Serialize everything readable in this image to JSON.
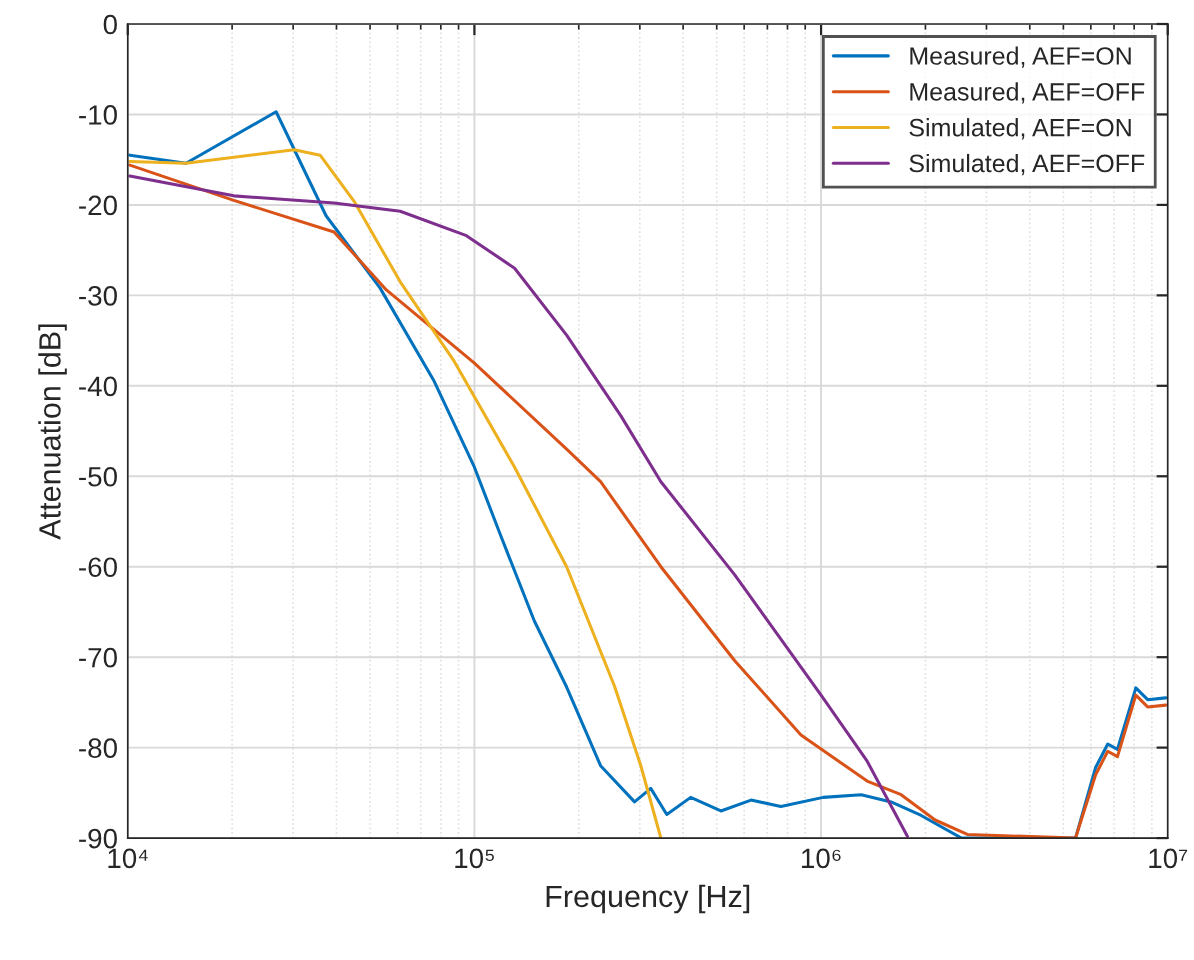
{
  "chart_data": {
    "type": "line",
    "xlabel": "Frequency [Hz]",
    "ylabel": "Attenuation [dB]",
    "log": "x",
    "xlim": [
      10000,
      10000000
    ],
    "xticks": [
      {
        "value": 10000,
        "label": "10⁴"
      },
      {
        "value": 100000,
        "label": "10⁵"
      },
      {
        "value": 1000000,
        "label": "10⁶"
      },
      {
        "value": 10000000,
        "label": "10⁷"
      }
    ],
    "ylim": [
      -90,
      0
    ],
    "yticks": [
      -90,
      -80,
      -70,
      -60,
      -50,
      -40,
      -30,
      -20,
      -10,
      0
    ],
    "grid": true,
    "legend": "top right",
    "series": [
      {
        "name": "Measured, AEF=ON",
        "color": "#0072bd",
        "x": [
          10140,
          14720,
          26790,
          37330,
          53460,
          76560,
          100000,
          118900,
          148900,
          184500,
          231200,
          289700,
          322600,
          358900,
          420600,
          514000,
          628100,
          765600,
          1014000,
          1306000,
          1592000,
          1945000,
          2541000,
          5420000,
          6194000,
          6714000,
          7161000,
          8091000,
          8750000,
          9863000
        ],
        "values": [
          -14.5,
          -15.4,
          -9.7,
          -21.2,
          -29.2,
          -39.5,
          -49,
          -56.5,
          -66,
          -73.3,
          -82,
          -86,
          -84.5,
          -87.4,
          -85.5,
          -87,
          -85.8,
          -86.5,
          -85.5,
          -85.2,
          -86,
          -87.5,
          -90,
          -90,
          -82.2,
          -79.6,
          -80.2,
          -73.4,
          -74.7,
          -74.5
        ]
      },
      {
        "name": "Measured, AEF=OFF",
        "color": "#d95319",
        "x": [
          10140,
          20230,
          39360,
          55720,
          100000,
          184500,
          231200,
          345100,
          563600,
          875000,
          1358000,
          1702000,
          2133000,
          2642000,
          5420000,
          6194000,
          6714000,
          7161000,
          8091000,
          8750000,
          9863000
        ],
        "values": [
          -15.6,
          -19.5,
          -23,
          -29.4,
          -37.5,
          -47,
          -50.6,
          -60,
          -70.4,
          -78.6,
          -83.7,
          -85.2,
          -88,
          -89.6,
          -90,
          -83,
          -80.4,
          -81,
          -74.2,
          -75.5,
          -75.3
        ]
      },
      {
        "name": "Simulated, AEF=ON",
        "color": "#edb120",
        "x": [
          10140,
          14720,
          30200,
          35890,
          44980,
          61090,
          87480,
          130600,
          184500,
          254100,
          302000,
          345100
        ],
        "values": [
          -15.2,
          -15.4,
          -13.9,
          -14.5,
          -19.6,
          -28.5,
          -37.3,
          -49,
          -60,
          -73.3,
          -82,
          -90
        ]
      },
      {
        "name": "Simulated, AEF=OFF",
        "color": "#7e2f8e",
        "x": [
          10140,
          20230,
          39360,
          61090,
          94830,
          130600,
          184500,
          264300,
          345100,
          563600,
          1000000,
          1358000,
          1774000
        ],
        "values": [
          -16.8,
          -19,
          -19.8,
          -20.7,
          -23.4,
          -27,
          -34.4,
          -43.3,
          -50.6,
          -60.9,
          -74.2,
          -81.5,
          -89.8
        ]
      }
    ]
  }
}
